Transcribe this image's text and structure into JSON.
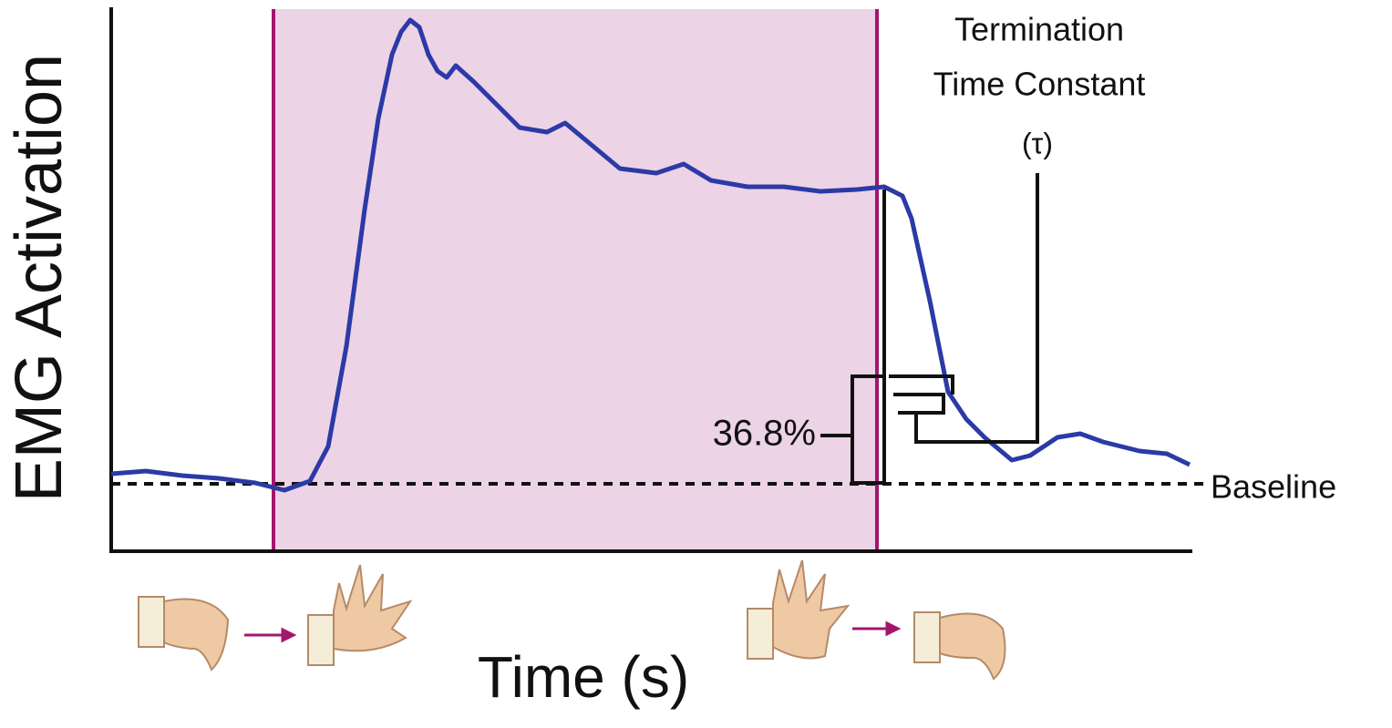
{
  "axes": {
    "y_label": "EMG Activation",
    "x_label": "Time (s)"
  },
  "annotations": {
    "termination": "Termination",
    "time_constant": "Time Constant",
    "tau": "(τ)",
    "percent": "36.8%",
    "baseline": "Baseline"
  }
}
